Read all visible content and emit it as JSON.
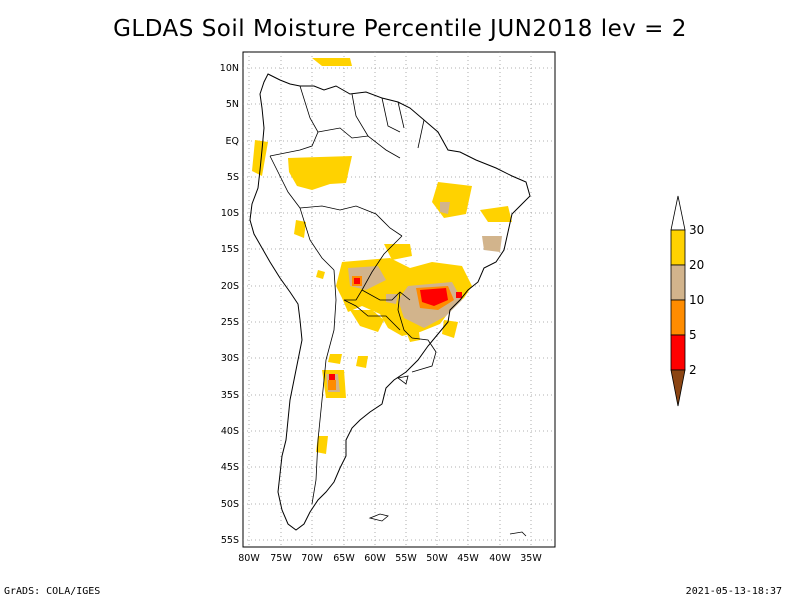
{
  "title": "GLDAS Soil Moisture Percentile JUN2018 lev = 2",
  "footer": {
    "left": "GrADS: COLA/IGES",
    "right": "2021-05-13-18:37"
  },
  "map": {
    "region": "South America",
    "lat_ticks": [
      "10N",
      "5N",
      "EQ",
      "5S",
      "10S",
      "15S",
      "20S",
      "25S",
      "30S",
      "35S",
      "40S",
      "45S",
      "50S",
      "55S"
    ],
    "lon_ticks": [
      "80W",
      "75W",
      "70W",
      "65W",
      "60W",
      "55W",
      "50W",
      "45W",
      "40W",
      "35W"
    ],
    "grid": "dotted"
  },
  "colorbar": {
    "labels": [
      "30",
      "20",
      "10",
      "5",
      "2"
    ],
    "colors": {
      "c30": "#ffd200",
      "c20": "#d2b48c",
      "c10": "#ff8c00",
      "c5": "#ff0000",
      "c2": "#8b4513",
      "top": "#ffffff"
    }
  }
}
